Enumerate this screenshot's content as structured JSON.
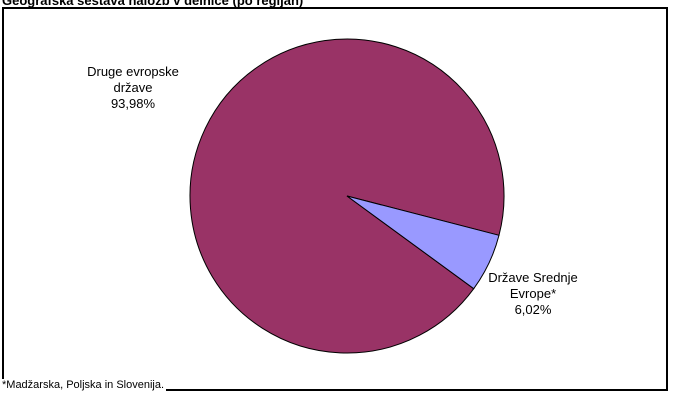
{
  "chart_data": {
    "type": "pie",
    "title": "Geografska sestava naložb v delnice (po regijah)",
    "slices": [
      {
        "label_lines": [
          "Druge evropske",
          "države"
        ],
        "percent_text": "93,98%",
        "value": 93.98,
        "color": "#993366"
      },
      {
        "label_lines": [
          "Države Srednje",
          "Evrope*"
        ],
        "percent_text": "6,02%",
        "value": 6.02,
        "color": "#9999ff"
      }
    ],
    "footnote": "*Madžarska, Poljska in Slovenija."
  }
}
